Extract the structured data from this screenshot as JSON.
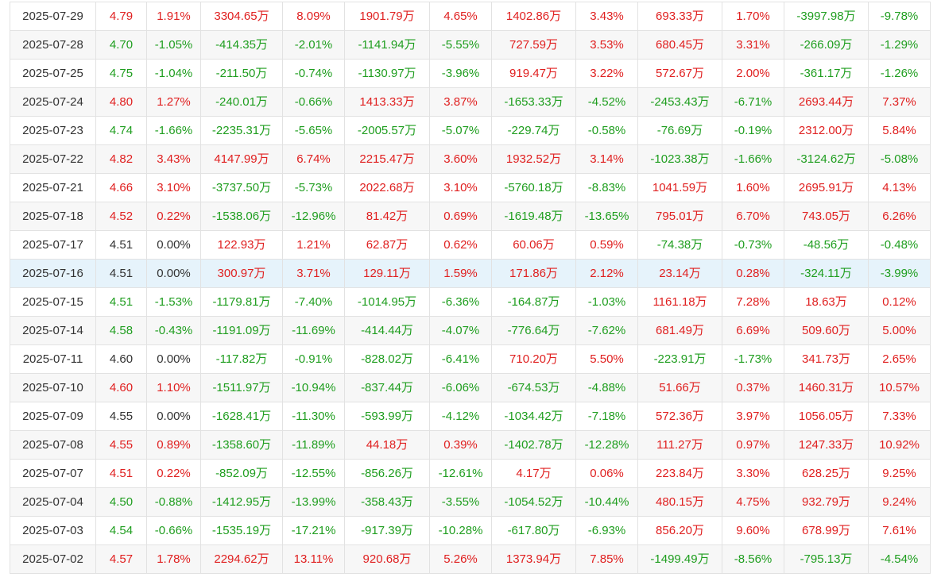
{
  "table": {
    "highlight_index": 9,
    "colors": {
      "up": "#e02020",
      "down": "#1f9e1f",
      "flat": "#333333",
      "highlight_bg": "#e6f3fb"
    },
    "rows": [
      [
        "2025-07-29",
        "4.79",
        "1.91%",
        "3304.65万",
        "8.09%",
        "1901.79万",
        "4.65%",
        "1402.86万",
        "3.43%",
        "693.33万",
        "1.70%",
        "-3997.98万",
        "-9.78%"
      ],
      [
        "2025-07-28",
        "4.70",
        "-1.05%",
        "-414.35万",
        "-2.01%",
        "-1141.94万",
        "-5.55%",
        "727.59万",
        "3.53%",
        "680.45万",
        "3.31%",
        "-266.09万",
        "-1.29%"
      ],
      [
        "2025-07-25",
        "4.75",
        "-1.04%",
        "-211.50万",
        "-0.74%",
        "-1130.97万",
        "-3.96%",
        "919.47万",
        "3.22%",
        "572.67万",
        "2.00%",
        "-361.17万",
        "-1.26%"
      ],
      [
        "2025-07-24",
        "4.80",
        "1.27%",
        "-240.01万",
        "-0.66%",
        "1413.33万",
        "3.87%",
        "-1653.33万",
        "-4.52%",
        "-2453.43万",
        "-6.71%",
        "2693.44万",
        "7.37%"
      ],
      [
        "2025-07-23",
        "4.74",
        "-1.66%",
        "-2235.31万",
        "-5.65%",
        "-2005.57万",
        "-5.07%",
        "-229.74万",
        "-0.58%",
        "-76.69万",
        "-0.19%",
        "2312.00万",
        "5.84%"
      ],
      [
        "2025-07-22",
        "4.82",
        "3.43%",
        "4147.99万",
        "6.74%",
        "2215.47万",
        "3.60%",
        "1932.52万",
        "3.14%",
        "-1023.38万",
        "-1.66%",
        "-3124.62万",
        "-5.08%"
      ],
      [
        "2025-07-21",
        "4.66",
        "3.10%",
        "-3737.50万",
        "-5.73%",
        "2022.68万",
        "3.10%",
        "-5760.18万",
        "-8.83%",
        "1041.59万",
        "1.60%",
        "2695.91万",
        "4.13%"
      ],
      [
        "2025-07-18",
        "4.52",
        "0.22%",
        "-1538.06万",
        "-12.96%",
        "81.42万",
        "0.69%",
        "-1619.48万",
        "-13.65%",
        "795.01万",
        "6.70%",
        "743.05万",
        "6.26%"
      ],
      [
        "2025-07-17",
        "4.51",
        "0.00%",
        "122.93万",
        "1.21%",
        "62.87万",
        "0.62%",
        "60.06万",
        "0.59%",
        "-74.38万",
        "-0.73%",
        "-48.56万",
        "-0.48%"
      ],
      [
        "2025-07-16",
        "4.51",
        "0.00%",
        "300.97万",
        "3.71%",
        "129.11万",
        "1.59%",
        "171.86万",
        "2.12%",
        "23.14万",
        "0.28%",
        "-324.11万",
        "-3.99%"
      ],
      [
        "2025-07-15",
        "4.51",
        "-1.53%",
        "-1179.81万",
        "-7.40%",
        "-1014.95万",
        "-6.36%",
        "-164.87万",
        "-1.03%",
        "1161.18万",
        "7.28%",
        "18.63万",
        "0.12%"
      ],
      [
        "2025-07-14",
        "4.58",
        "-0.43%",
        "-1191.09万",
        "-11.69%",
        "-414.44万",
        "-4.07%",
        "-776.64万",
        "-7.62%",
        "681.49万",
        "6.69%",
        "509.60万",
        "5.00%"
      ],
      [
        "2025-07-11",
        "4.60",
        "0.00%",
        "-117.82万",
        "-0.91%",
        "-828.02万",
        "-6.41%",
        "710.20万",
        "5.50%",
        "-223.91万",
        "-1.73%",
        "341.73万",
        "2.65%"
      ],
      [
        "2025-07-10",
        "4.60",
        "1.10%",
        "-1511.97万",
        "-10.94%",
        "-837.44万",
        "-6.06%",
        "-674.53万",
        "-4.88%",
        "51.66万",
        "0.37%",
        "1460.31万",
        "10.57%"
      ],
      [
        "2025-07-09",
        "4.55",
        "0.00%",
        "-1628.41万",
        "-11.30%",
        "-593.99万",
        "-4.12%",
        "-1034.42万",
        "-7.18%",
        "572.36万",
        "3.97%",
        "1056.05万",
        "7.33%"
      ],
      [
        "2025-07-08",
        "4.55",
        "0.89%",
        "-1358.60万",
        "-11.89%",
        "44.18万",
        "0.39%",
        "-1402.78万",
        "-12.28%",
        "111.27万",
        "0.97%",
        "1247.33万",
        "10.92%"
      ],
      [
        "2025-07-07",
        "4.51",
        "0.22%",
        "-852.09万",
        "-12.55%",
        "-856.26万",
        "-12.61%",
        "4.17万",
        "0.06%",
        "223.84万",
        "3.30%",
        "628.25万",
        "9.25%"
      ],
      [
        "2025-07-04",
        "4.50",
        "-0.88%",
        "-1412.95万",
        "-13.99%",
        "-358.43万",
        "-3.55%",
        "-1054.52万",
        "-10.44%",
        "480.15万",
        "4.75%",
        "932.79万",
        "9.24%"
      ],
      [
        "2025-07-03",
        "4.54",
        "-0.66%",
        "-1535.19万",
        "-17.21%",
        "-917.39万",
        "-10.28%",
        "-617.80万",
        "-6.93%",
        "856.20万",
        "9.60%",
        "678.99万",
        "7.61%"
      ],
      [
        "2025-07-02",
        "4.57",
        "1.78%",
        "2294.62万",
        "13.11%",
        "920.68万",
        "5.26%",
        "1373.94万",
        "7.85%",
        "-1499.49万",
        "-8.56%",
        "-795.13万",
        "-4.54%"
      ]
    ]
  }
}
